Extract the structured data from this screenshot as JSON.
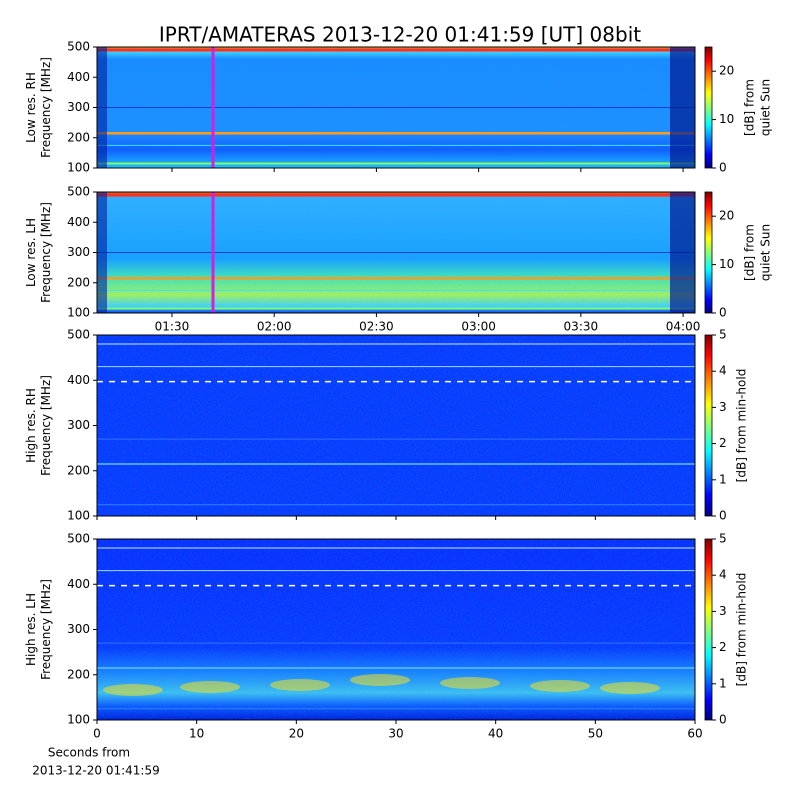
{
  "chart_data": [
    {
      "type": "spectrogram",
      "title": "IPRT/AMATERAS 2013-12-20 01:41:59 [UT]   08bit",
      "ylabel": [
        "Low res. RH",
        "Frequency [MHz]"
      ],
      "ylim": [
        100,
        500
      ],
      "yticks": [
        100,
        200,
        300,
        400,
        500
      ],
      "clim": [
        0,
        25
      ],
      "cticks": [
        0,
        10,
        20
      ],
      "clabel": [
        "[dB] from",
        "quiet Sun"
      ]
    },
    {
      "type": "spectrogram",
      "ylabel": [
        "Low res. LH",
        "Frequency [MHz]"
      ],
      "ylim": [
        100,
        500
      ],
      "yticks": [
        100,
        200,
        300,
        400,
        500
      ],
      "xlim": [
        68,
        243.5
      ],
      "xticks": [
        {
          "value": 90,
          "label": "01:30"
        },
        {
          "value": 120,
          "label": "02:00"
        },
        {
          "value": 150,
          "label": "02:30"
        },
        {
          "value": 180,
          "label": "03:00"
        },
        {
          "value": 210,
          "label": "03:30"
        },
        {
          "value": 240,
          "label": "04:00"
        }
      ],
      "clim": [
        0,
        25
      ],
      "cticks": [
        0,
        10,
        20
      ],
      "clabel": [
        "[dB] from",
        "quiet Sun"
      ]
    },
    {
      "type": "spectrogram",
      "ylabel": [
        "High res. RH",
        "Frequency [MHz]"
      ],
      "ylim": [
        100,
        500
      ],
      "yticks": [
        100,
        200,
        300,
        400,
        500
      ],
      "clim": [
        0,
        5
      ],
      "cticks": [
        0,
        1,
        2,
        3,
        4,
        5
      ],
      "clabel": [
        "[dB] from min-hold"
      ]
    },
    {
      "type": "spectrogram",
      "ylabel": [
        "High res. LH",
        "Frequency [MHz]"
      ],
      "ylim": [
        100,
        500
      ],
      "yticks": [
        100,
        200,
        300,
        400,
        500
      ],
      "xlim": [
        0,
        60
      ],
      "xticks": [
        0,
        10,
        20,
        30,
        40,
        50,
        60
      ],
      "xlabel": [
        "Seconds from",
        "2013-12-20 01:41:59"
      ],
      "clim": [
        0,
        5
      ],
      "cticks": [
        0,
        1,
        2,
        3,
        4,
        5
      ],
      "clabel": [
        "[dB] from min-hold"
      ]
    }
  ]
}
